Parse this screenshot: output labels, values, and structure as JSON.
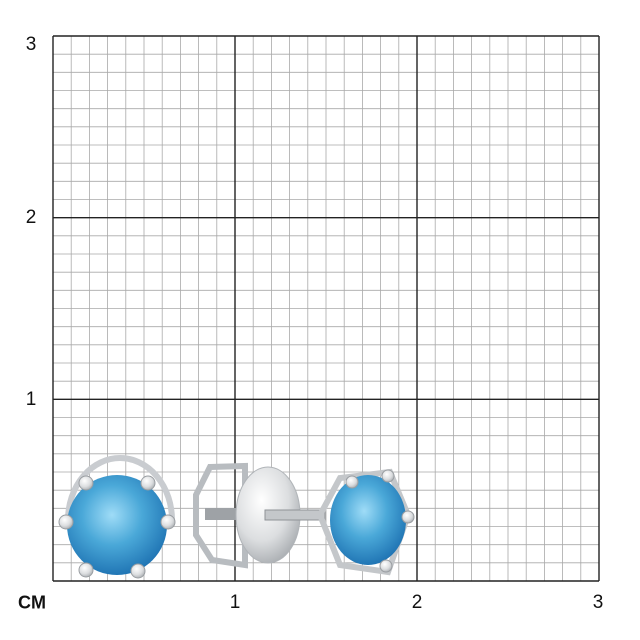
{
  "ruler": {
    "unit_label": "CM",
    "x_labels": [
      "1",
      "2",
      "3"
    ],
    "y_labels": [
      "1",
      "2",
      "3"
    ],
    "range_cm": [
      0,
      3
    ],
    "subdivisions_per_cm": 10
  },
  "product": {
    "item": "stud-earrings-pair",
    "gem_color": "#4aa8d8",
    "metal_color": "#d8dadc"
  },
  "colors": {
    "minor_grid": "#a9a9a9",
    "major_grid": "#222222",
    "background": "#ffffff"
  }
}
